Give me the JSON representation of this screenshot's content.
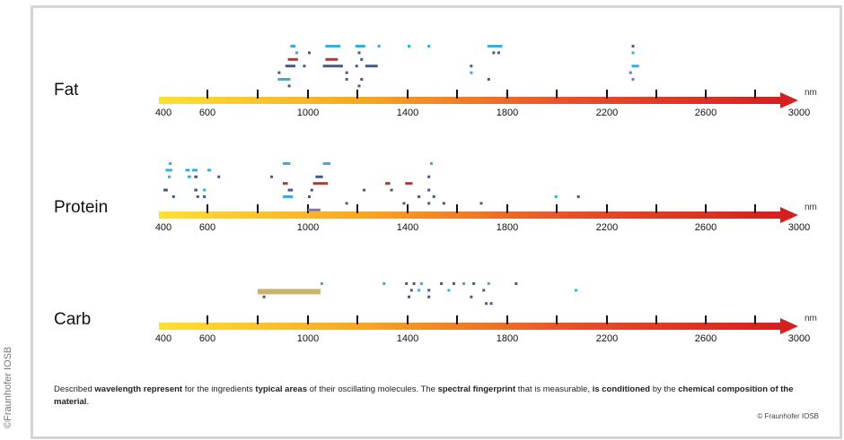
{
  "side_credit": "©Fraunhofer IOSB",
  "copyright": "© Fraunhofer IOSB",
  "caption": {
    "parts": [
      {
        "text": "Described ",
        "bold": false
      },
      {
        "text": "wavelength represent",
        "bold": true
      },
      {
        "text": " for the ingredients ",
        "bold": false
      },
      {
        "text": "typical areas",
        "bold": true
      },
      {
        "text": " of their oscillating molecules. The ",
        "bold": false
      },
      {
        "text": "spectral fingerprint",
        "bold": true
      },
      {
        "text": " that is measurable, ",
        "bold": false
      },
      {
        "text": "is conditioned",
        "bold": true
      },
      {
        "text": " by the ",
        "bold": false
      },
      {
        "text": "chemical composition of the material",
        "bold": true
      },
      {
        "text": ".",
        "bold": false
      }
    ]
  },
  "axis": {
    "unit": "nm",
    "ticks": [
      400,
      600,
      1000,
      1400,
      1800,
      2200,
      2600,
      3000
    ],
    "labels": [
      "400",
      "600",
      "1000",
      "1400",
      "1800",
      "2200",
      "2600",
      "3000"
    ],
    "tick_marks": [
      600,
      800,
      1000,
      1200,
      1400,
      1600,
      1800,
      2000,
      2200,
      2400,
      2600,
      2800
    ],
    "gradient": [
      "#ffe033",
      "#f6a623",
      "#e94e2a",
      "#d42020"
    ]
  },
  "colors": {
    "blue": "#3aaed6",
    "dark": "#4a5a80",
    "red": "#b8362e",
    "gold": "#c9b46a",
    "violet": "#8a6ac0"
  },
  "rows": [
    {
      "label": "Fat",
      "bands": [
        {
          "from": 930,
          "to": 950,
          "level": 0,
          "color": "blue"
        },
        {
          "from": 1070,
          "to": 1130,
          "level": 0,
          "color": "blue"
        },
        {
          "from": 1190,
          "to": 1230,
          "level": 0,
          "color": "blue"
        },
        {
          "from": 1280,
          "to": 1290,
          "level": 0,
          "color": "blue"
        },
        {
          "from": 1400,
          "to": 1410,
          "level": 0,
          "color": "blue"
        },
        {
          "from": 1480,
          "to": 1490,
          "level": 0,
          "color": "blue"
        },
        {
          "from": 1720,
          "to": 1780,
          "level": 0,
          "color": "blue"
        },
        {
          "from": 2300,
          "to": 2310,
          "level": 0,
          "color": "dark"
        },
        {
          "from": 950,
          "to": 960,
          "level": 1,
          "color": "blue"
        },
        {
          "from": 1000,
          "to": 1005,
          "level": 1,
          "color": "dark"
        },
        {
          "from": 1200,
          "to": 1210,
          "level": 1,
          "color": "dark"
        },
        {
          "from": 1740,
          "to": 1745,
          "level": 1,
          "color": "dark"
        },
        {
          "from": 1760,
          "to": 1765,
          "level": 1,
          "color": "dark"
        },
        {
          "from": 2300,
          "to": 2310,
          "level": 1,
          "color": "blue"
        },
        {
          "from": 920,
          "to": 960,
          "level": 2,
          "color": "red"
        },
        {
          "from": 1070,
          "to": 1120,
          "level": 2,
          "color": "red"
        },
        {
          "from": 1210,
          "to": 1220,
          "level": 2,
          "color": "dark"
        },
        {
          "from": 910,
          "to": 950,
          "level": 3,
          "color": "dark"
        },
        {
          "from": 1060,
          "to": 1140,
          "level": 3,
          "color": "dark"
        },
        {
          "from": 1190,
          "to": 1200,
          "level": 3,
          "color": "dark"
        },
        {
          "from": 1230,
          "to": 1280,
          "level": 3,
          "color": "dark"
        },
        {
          "from": 980,
          "to": 985,
          "level": 3,
          "color": "dark"
        },
        {
          "from": 1650,
          "to": 1655,
          "level": 3,
          "color": "dark"
        },
        {
          "from": 2300,
          "to": 2330,
          "level": 3,
          "color": "blue"
        },
        {
          "from": 880,
          "to": 890,
          "level": 4,
          "color": "dark"
        },
        {
          "from": 1150,
          "to": 1155,
          "level": 4,
          "color": "dark"
        },
        {
          "from": 1650,
          "to": 1655,
          "level": 4,
          "color": "blue"
        },
        {
          "from": 2290,
          "to": 2300,
          "level": 4,
          "color": "violet"
        },
        {
          "from": 880,
          "to": 930,
          "level": 5,
          "color": "blue"
        },
        {
          "from": 1150,
          "to": 1160,
          "level": 5,
          "color": "dark"
        },
        {
          "from": 1210,
          "to": 1215,
          "level": 5,
          "color": "dark"
        },
        {
          "from": 1720,
          "to": 1725,
          "level": 5,
          "color": "dark"
        },
        {
          "from": 2300,
          "to": 2310,
          "level": 5,
          "color": "violet"
        },
        {
          "from": 920,
          "to": 925,
          "level": 6,
          "color": "dark"
        },
        {
          "from": 1200,
          "to": 1205,
          "level": 6,
          "color": "dark"
        }
      ]
    },
    {
      "label": "Protein",
      "bands": [
        {
          "from": 425,
          "to": 435,
          "level": 0,
          "color": "blue"
        },
        {
          "from": 900,
          "to": 930,
          "level": 0,
          "color": "blue"
        },
        {
          "from": 1060,
          "to": 1090,
          "level": 0,
          "color": "blue"
        },
        {
          "from": 1490,
          "to": 1495,
          "level": 0,
          "color": "blue"
        },
        {
          "from": 410,
          "to": 440,
          "level": 1,
          "color": "blue"
        },
        {
          "from": 500,
          "to": 520,
          "level": 1,
          "color": "blue"
        },
        {
          "from": 530,
          "to": 555,
          "level": 1,
          "color": "blue"
        },
        {
          "from": 600,
          "to": 615,
          "level": 1,
          "color": "blue"
        },
        {
          "from": 420,
          "to": 430,
          "level": 2,
          "color": "blue"
        },
        {
          "from": 510,
          "to": 525,
          "level": 2,
          "color": "blue"
        },
        {
          "from": 540,
          "to": 555,
          "level": 2,
          "color": "dark"
        },
        {
          "from": 640,
          "to": 650,
          "level": 2,
          "color": "dark"
        },
        {
          "from": 850,
          "to": 855,
          "level": 2,
          "color": "dark"
        },
        {
          "from": 1030,
          "to": 1060,
          "level": 2,
          "color": "dark"
        },
        {
          "from": 1480,
          "to": 1490,
          "level": 2,
          "color": "dark"
        },
        {
          "from": 900,
          "to": 920,
          "level": 3,
          "color": "red"
        },
        {
          "from": 1020,
          "to": 1080,
          "level": 3,
          "color": "red"
        },
        {
          "from": 1310,
          "to": 1330,
          "level": 3,
          "color": "red"
        },
        {
          "from": 1390,
          "to": 1420,
          "level": 3,
          "color": "red"
        },
        {
          "from": 400,
          "to": 420,
          "level": 4,
          "color": "dark"
        },
        {
          "from": 540,
          "to": 555,
          "level": 4,
          "color": "dark"
        },
        {
          "from": 580,
          "to": 590,
          "level": 4,
          "color": "blue"
        },
        {
          "from": 920,
          "to": 940,
          "level": 4,
          "color": "dark"
        },
        {
          "from": 1010,
          "to": 1020,
          "level": 4,
          "color": "dark"
        },
        {
          "from": 1220,
          "to": 1230,
          "level": 4,
          "color": "dark"
        },
        {
          "from": 1330,
          "to": 1335,
          "level": 4,
          "color": "dark"
        },
        {
          "from": 1480,
          "to": 1490,
          "level": 4,
          "color": "dark"
        },
        {
          "from": 440,
          "to": 450,
          "level": 5,
          "color": "dark"
        },
        {
          "from": 550,
          "to": 560,
          "level": 5,
          "color": "dark"
        },
        {
          "from": 580,
          "to": 590,
          "level": 5,
          "color": "dark"
        },
        {
          "from": 900,
          "to": 940,
          "level": 5,
          "color": "blue"
        },
        {
          "from": 1000,
          "to": 1010,
          "level": 5,
          "color": "dark"
        },
        {
          "from": 1440,
          "to": 1450,
          "level": 5,
          "color": "dark"
        },
        {
          "from": 1500,
          "to": 1510,
          "level": 5,
          "color": "dark"
        },
        {
          "from": 1990,
          "to": 2000,
          "level": 5,
          "color": "blue"
        },
        {
          "from": 1150,
          "to": 1155,
          "level": 6,
          "color": "dark"
        },
        {
          "from": 1380,
          "to": 1385,
          "level": 6,
          "color": "dark"
        },
        {
          "from": 1480,
          "to": 1485,
          "level": 6,
          "color": "dark"
        },
        {
          "from": 1540,
          "to": 1545,
          "level": 6,
          "color": "dark"
        },
        {
          "from": 1690,
          "to": 1695,
          "level": 6,
          "color": "dark"
        },
        {
          "from": 2080,
          "to": 2085,
          "level": 5,
          "color": "dark"
        },
        {
          "from": 1000,
          "to": 1050,
          "level": 7,
          "color": "violet"
        }
      ]
    },
    {
      "label": "Carb",
      "bands": [
        {
          "from": 1050,
          "to": 1055,
          "level": 0,
          "color": "blue"
        },
        {
          "from": 1300,
          "to": 1310,
          "level": 0,
          "color": "blue"
        },
        {
          "from": 1390,
          "to": 1395,
          "level": 0,
          "color": "dark"
        },
        {
          "from": 1420,
          "to": 1425,
          "level": 0,
          "color": "dark"
        },
        {
          "from": 1450,
          "to": 1460,
          "level": 0,
          "color": "blue"
        },
        {
          "from": 1530,
          "to": 1535,
          "level": 0,
          "color": "dark"
        },
        {
          "from": 1580,
          "to": 1590,
          "level": 0,
          "color": "dark"
        },
        {
          "from": 1620,
          "to": 1625,
          "level": 0,
          "color": "blue"
        },
        {
          "from": 1660,
          "to": 1665,
          "level": 0,
          "color": "dark"
        },
        {
          "from": 1720,
          "to": 1730,
          "level": 0,
          "color": "blue"
        },
        {
          "from": 1830,
          "to": 1835,
          "level": 0,
          "color": "dark"
        },
        {
          "from": 800,
          "to": 1050,
          "level": 1,
          "color": "gold"
        },
        {
          "from": 1410,
          "to": 1415,
          "level": 1,
          "color": "dark"
        },
        {
          "from": 1440,
          "to": 1445,
          "level": 1,
          "color": "blue"
        },
        {
          "from": 1480,
          "to": 1490,
          "level": 1,
          "color": "dark"
        },
        {
          "from": 1560,
          "to": 1565,
          "level": 1,
          "color": "blue"
        },
        {
          "from": 1700,
          "to": 1705,
          "level": 1,
          "color": "dark"
        },
        {
          "from": 2070,
          "to": 2075,
          "level": 1,
          "color": "blue"
        },
        {
          "from": 820,
          "to": 825,
          "level": 2,
          "color": "dark"
        },
        {
          "from": 1400,
          "to": 1405,
          "level": 2,
          "color": "dark"
        },
        {
          "from": 1650,
          "to": 1655,
          "level": 2,
          "color": "dark"
        },
        {
          "from": 1480,
          "to": 1485,
          "level": 2,
          "color": "dark"
        },
        {
          "from": 1710,
          "to": 1715,
          "level": 3,
          "color": "dark"
        },
        {
          "from": 1730,
          "to": 1735,
          "level": 3,
          "color": "dark"
        }
      ]
    }
  ]
}
